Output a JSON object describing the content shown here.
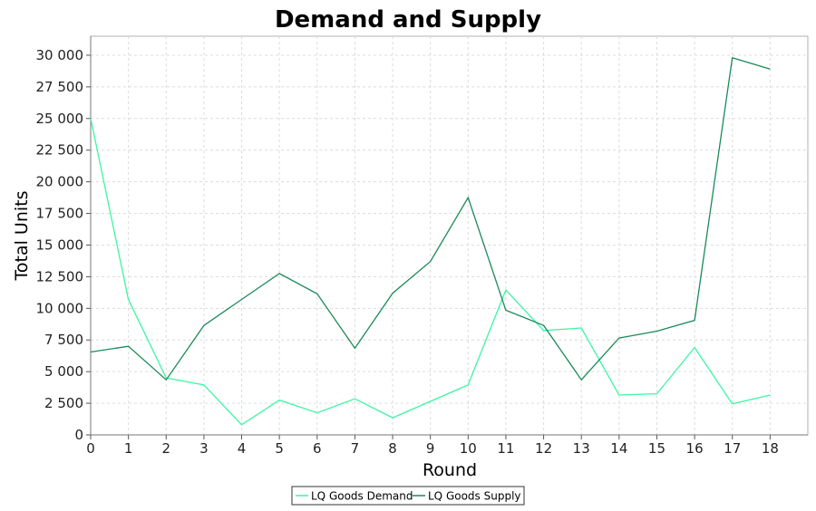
{
  "chart_data": {
    "type": "line",
    "title": "Demand and Supply",
    "xlabel": "Round",
    "ylabel": "Total Units",
    "x": [
      0,
      1,
      2,
      3,
      4,
      5,
      6,
      7,
      8,
      9,
      10,
      11,
      12,
      13,
      14,
      15,
      16,
      17,
      18
    ],
    "xlim": [
      0,
      19
    ],
    "ylim": [
      0,
      31500
    ],
    "y_ticks": [
      0,
      2500,
      5000,
      7500,
      10000,
      12500,
      15000,
      17500,
      20000,
      22500,
      25000,
      27500,
      30000
    ],
    "y_tick_labels": [
      "0",
      "2 500",
      "5 000",
      "7 500",
      "10 000",
      "12 500",
      "15 000",
      "17 500",
      "20 000",
      "22 500",
      "25 000",
      "27 500",
      "30 000"
    ],
    "x_tick_labels": [
      "0",
      "1",
      "2",
      "3",
      "4",
      "5",
      "6",
      "7",
      "8",
      "9",
      "10",
      "11",
      "12",
      "13",
      "14",
      "15",
      "16",
      "17",
      "18"
    ],
    "grid": true,
    "legend_position": "bottom",
    "series": [
      {
        "name": "LQ Goods Demand",
        "color": "#3cf5a4",
        "values": [
          25000,
          10700,
          4500,
          3950,
          800,
          2750,
          1750,
          2850,
          1350,
          2650,
          3950,
          11450,
          8250,
          8450,
          3150,
          3250,
          6900,
          2450,
          3150
        ]
      },
      {
        "name": "LQ Goods Supply",
        "color": "#1b8a5a",
        "values": [
          6550,
          7000,
          4350,
          8650,
          10700,
          12750,
          11150,
          6850,
          11200,
          13700,
          18750,
          9850,
          8650,
          4350,
          7650,
          8200,
          9050,
          29800,
          28900
        ]
      }
    ]
  }
}
